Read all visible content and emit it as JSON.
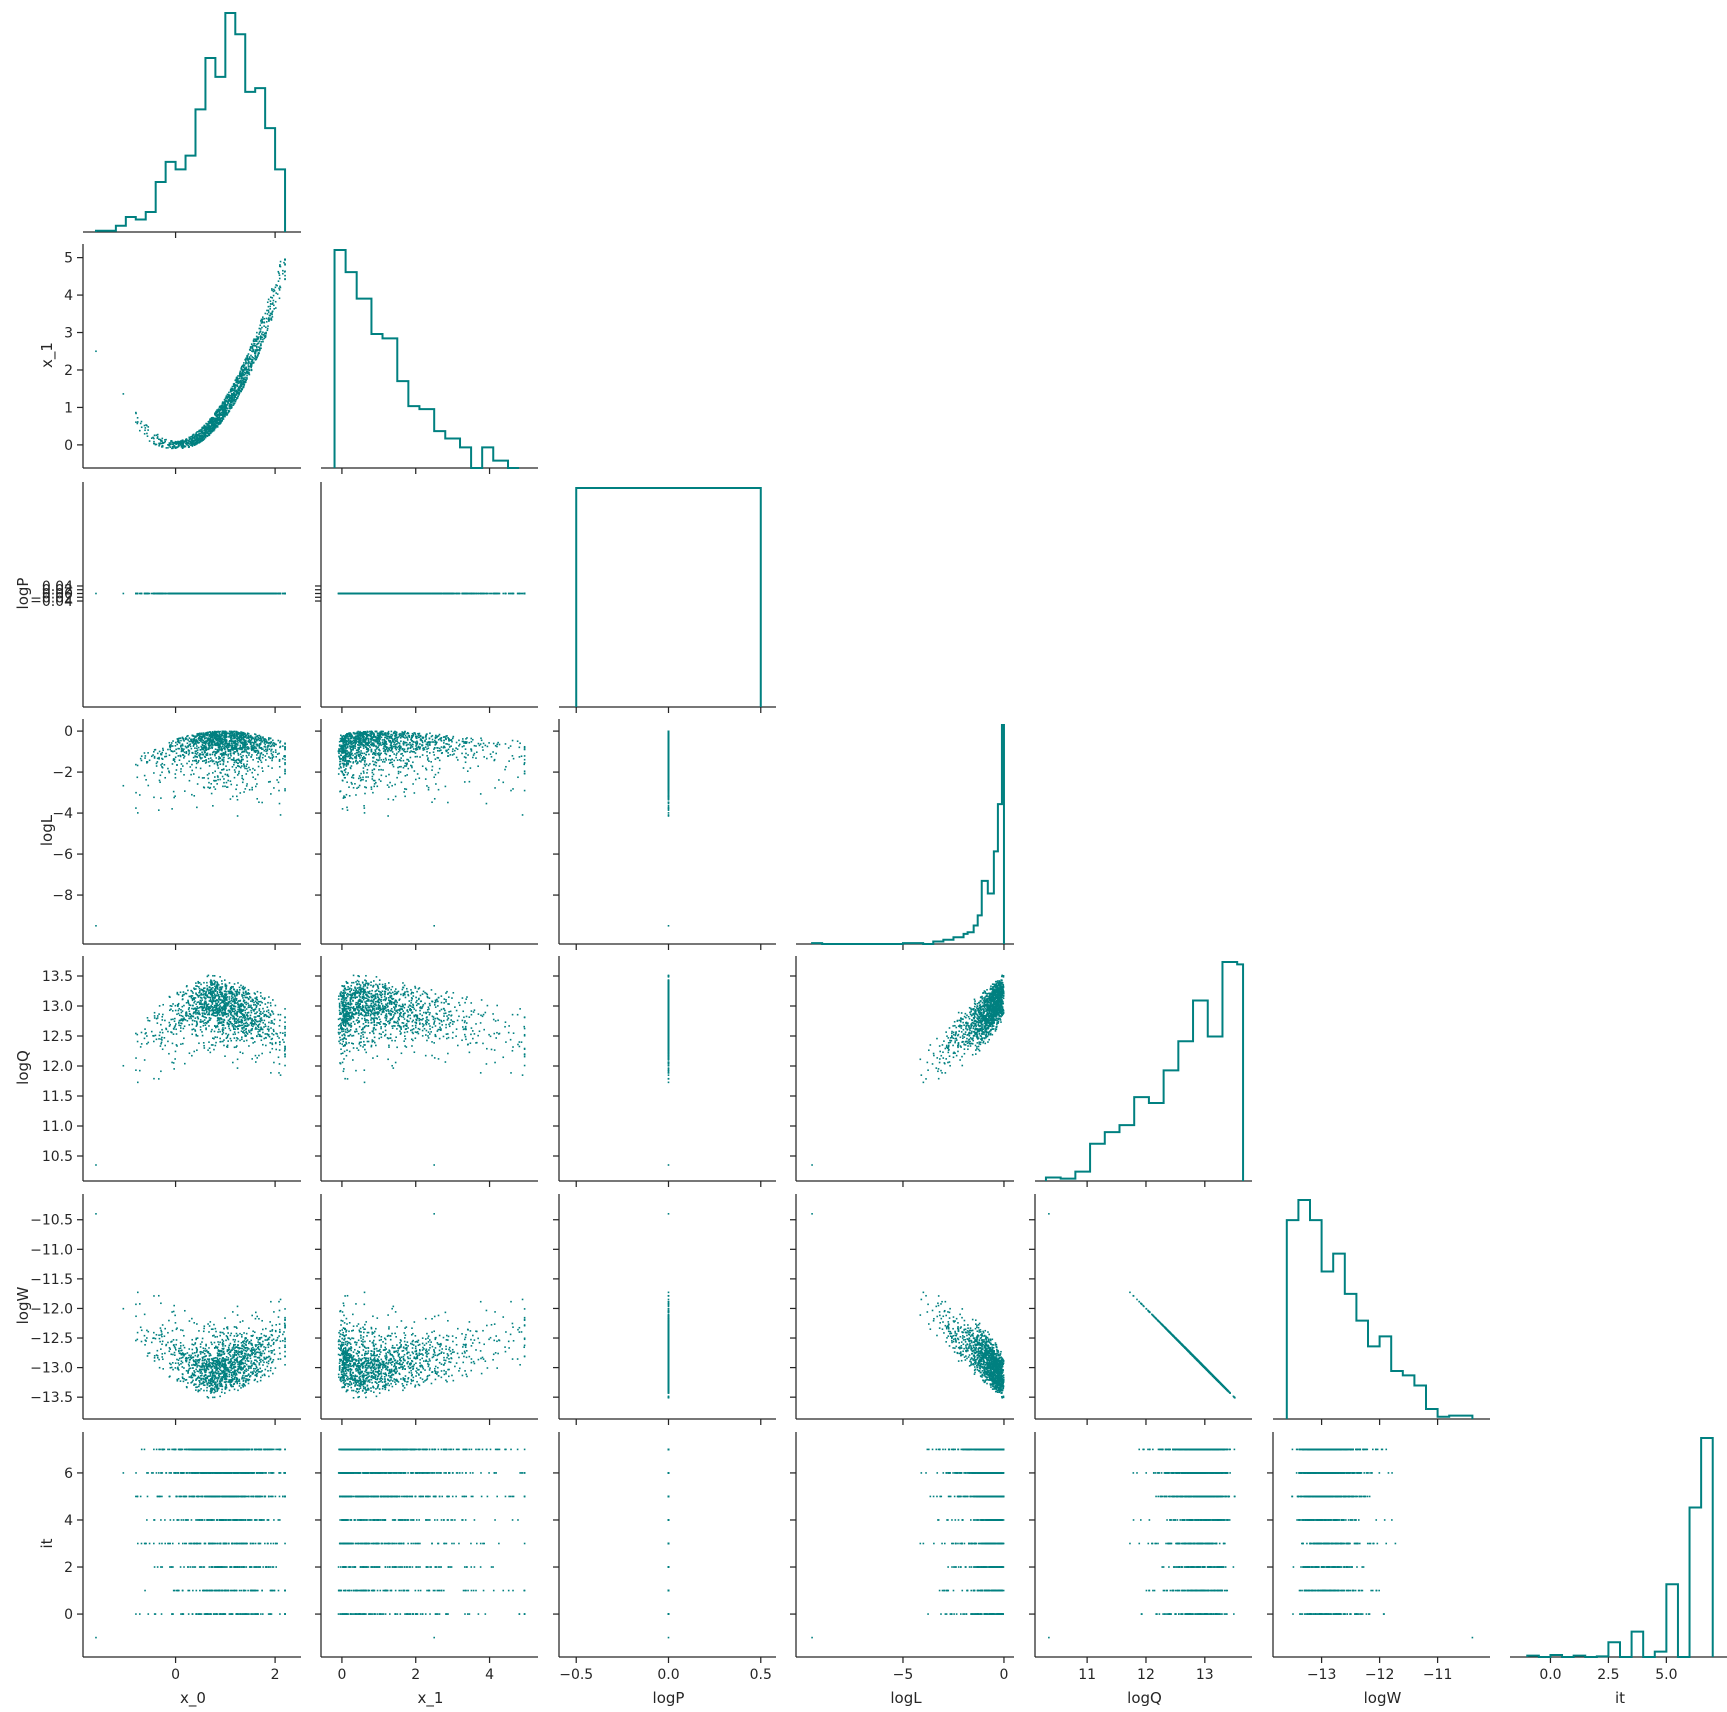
{
  "chart_data": {
    "type": "scatter",
    "kind": "pair-plot (corner)",
    "color": "#008080",
    "variables": [
      "x_0",
      "x_1",
      "logP",
      "logL",
      "logQ",
      "logW",
      "it"
    ],
    "ranges": {
      "x_0": [
        -1.7,
        2.4
      ],
      "x_1": [
        -0.35,
        5.15
      ],
      "logP": [
        -0.55,
        0.55
      ],
      "logL": [
        -9.9,
        0.2
      ],
      "logQ": [
        10.25,
        13.7
      ],
      "logW": [
        -13.7,
        -10.2
      ],
      "it": [
        -1.4,
        7.4
      ]
    },
    "ticks": {
      "x_0": [
        0,
        2
      ],
      "x_1": [
        0,
        1,
        2,
        3,
        4,
        5
      ],
      "logP": [
        -0.04,
        -0.02,
        0.0,
        0.02,
        0.04
      ],
      "logL": [
        0,
        -2,
        -4,
        -6,
        -8
      ],
      "logQ": [
        10.5,
        11.0,
        11.5,
        12.0,
        12.5,
        13.0,
        13.5
      ],
      "logW": [
        -10.5,
        -11.0,
        -11.5,
        -12.0,
        -12.5,
        -13.0,
        -13.5
      ],
      "it": [
        0,
        2,
        4,
        6
      ]
    },
    "bottom_ticks": {
      "x_0": [
        0,
        2
      ],
      "x_1": [
        0,
        2,
        4
      ],
      "logP": [
        -0.5,
        0.0,
        0.5
      ],
      "logL": [
        -5,
        0
      ],
      "logQ": [
        11,
        12,
        13
      ],
      "logW": [
        -13,
        -12,
        -11
      ],
      "it": [
        0.0,
        2.5,
        5.0
      ]
    },
    "tick_labels": {
      "x_0": [
        "0",
        "2"
      ],
      "x_1_y": [
        "0",
        "1",
        "2",
        "3",
        "4",
        "5"
      ],
      "x_1_x": [
        "0",
        "2",
        "4"
      ],
      "logP_y": [
        "−0.04",
        "−0.02",
        "0.00",
        "0.02",
        "0.04"
      ],
      "logP_x": [
        "−0.5",
        "0.0",
        "0.5"
      ],
      "logL_y": [
        "0",
        "−2",
        "−4",
        "−6",
        "−8"
      ],
      "logL_x": [
        "−5",
        "0"
      ],
      "logQ_y": [
        "10.5",
        "11.0",
        "11.5",
        "12.0",
        "12.5",
        "13.0",
        "13.5"
      ],
      "logQ_x": [
        "11",
        "12",
        "13"
      ],
      "logW_y": [
        "−10.5",
        "−11.0",
        "−11.5",
        "−12.0",
        "−12.5",
        "−13.0",
        "−13.5"
      ],
      "logW_x": [
        "−13",
        "−12",
        "−11"
      ],
      "it_y": [
        "0",
        "2",
        "4",
        "6"
      ],
      "it_x": [
        "0.0",
        "2.5",
        "5.0"
      ]
    },
    "histograms": {
      "x_0": {
        "edges": [
          -1.6,
          -1.4,
          -1.2,
          -1.0,
          -0.8,
          -0.6,
          -0.4,
          -0.2,
          0.0,
          0.2,
          0.4,
          0.6,
          0.8,
          1.0,
          1.2,
          1.4,
          1.6,
          1.8,
          2.0,
          2.2
        ],
        "counts": [
          1,
          1,
          5,
          12,
          10,
          16,
          40,
          56,
          50,
          61,
          98,
          139,
          124,
          175,
          158,
          112,
          115,
          83,
          50
        ]
      },
      "x_1": {
        "edges": [
          -0.2,
          0.1,
          0.4,
          0.8,
          1.1,
          1.5,
          1.8,
          2.1,
          2.5,
          2.8,
          3.2,
          3.5,
          3.8,
          4.1,
          4.5,
          4.8
        ],
        "counts": [
          148,
          133,
          115,
          91,
          88,
          59,
          42,
          40,
          25,
          20,
          14,
          0,
          14,
          5,
          0
        ]
      },
      "logP": {
        "edges": [
          -0.5,
          0.5
        ],
        "counts": [
          100
        ]
      },
      "logL": {
        "edges": [
          -9.5,
          -9.0,
          -5.0,
          -4.0,
          -3.5,
          -3.0,
          -2.5,
          -2.0,
          -1.8,
          -1.5,
          -1.3,
          -1.1,
          -0.8,
          -0.5,
          -0.3,
          -0.1,
          0.0
        ],
        "counts": [
          1,
          0,
          1,
          0,
          3,
          5,
          8,
          12,
          14,
          22,
          34,
          75,
          60,
          110,
          166,
          260
        ]
      },
      "logQ": {
        "edges": [
          10.3,
          10.55,
          10.8,
          11.05,
          11.3,
          11.55,
          11.8,
          12.05,
          12.3,
          12.55,
          12.8,
          13.05,
          13.3,
          13.55,
          13.65
        ],
        "counts": [
          3,
          2,
          8,
          32,
          42,
          48,
          72,
          67,
          95,
          120,
          155,
          124,
          188,
          186
        ]
      },
      "logW": {
        "edges": [
          -13.6,
          -13.4,
          -13.2,
          -13.0,
          -12.8,
          -12.6,
          -12.4,
          -12.2,
          -12.0,
          -11.8,
          -11.6,
          -11.4,
          -11.2,
          -11.0,
          -10.8,
          -10.6,
          -10.4
        ],
        "counts": [
          178,
          196,
          178,
          132,
          148,
          112,
          88,
          65,
          74,
          43,
          39,
          30,
          9,
          2,
          3,
          3
        ]
      },
      "it": {
        "edges": [
          -1.0,
          -0.5,
          0.0,
          0.5,
          1.0,
          1.5,
          2.0,
          2.5,
          3.0,
          3.5,
          4.0,
          4.5,
          5.0,
          5.5,
          6.0,
          6.5,
          7.0
        ],
        "counts": [
          2,
          0,
          3,
          0,
          2,
          0,
          1,
          22,
          0,
          38,
          0,
          8,
          109,
          0,
          224,
          328
        ]
      }
    },
    "axis_labels": {
      "x": [
        "x_0",
        "x_1",
        "logP",
        "logL",
        "logQ",
        "logW",
        "it"
      ],
      "y": [
        "",
        "x_1",
        "logP",
        "logL",
        "logQ",
        "logW",
        "it"
      ]
    }
  }
}
